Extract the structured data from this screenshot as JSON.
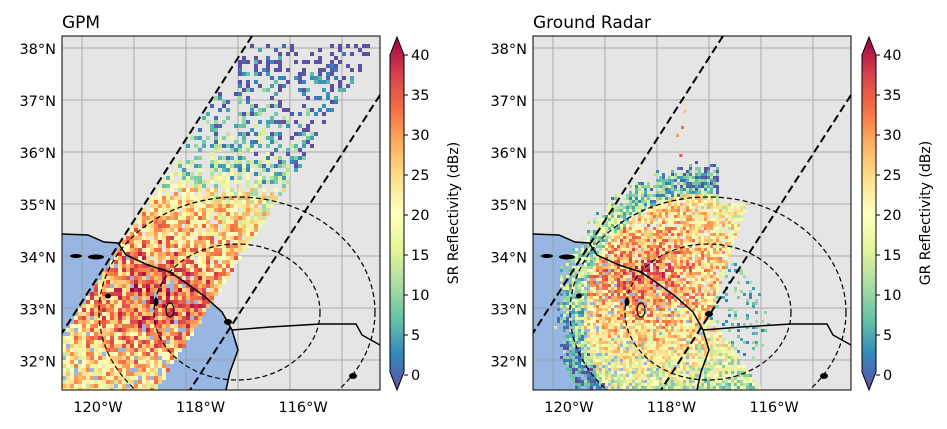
{
  "chart_data": [
    {
      "type": "heatmap",
      "title": "GPM",
      "colorbar_label": "SR Reflectivity (dBz)",
      "xlim": [
        -120.7,
        -114.5
      ],
      "ylim": [
        31.45,
        38.25
      ],
      "xticks": [
        {
          "value": -120,
          "label": "120°W"
        },
        {
          "value": -118,
          "label": "118°W"
        },
        {
          "value": -116,
          "label": "116°W"
        }
      ],
      "yticks": [
        {
          "value": 32,
          "label": "32°N"
        },
        {
          "value": 33,
          "label": "33°N"
        },
        {
          "value": 34,
          "label": "34°N"
        },
        {
          "value": 35,
          "label": "35°N"
        },
        {
          "value": 36,
          "label": "36°N"
        },
        {
          "value": 37,
          "label": "37°N"
        },
        {
          "value": 38,
          "label": "38°N"
        }
      ],
      "colorbar_ticks": [
        {
          "value": 0,
          "label": "0"
        },
        {
          "value": 5,
          "label": "5"
        },
        {
          "value": 10,
          "label": "10"
        },
        {
          "value": 15,
          "label": "15"
        },
        {
          "value": 20,
          "label": "20"
        },
        {
          "value": 25,
          "label": "25"
        },
        {
          "value": 30,
          "label": "30"
        },
        {
          "value": 35,
          "label": "35"
        },
        {
          "value": 40,
          "label": "40"
        }
      ],
      "colorbar_range": [
        0,
        40
      ],
      "grid": true
    },
    {
      "type": "heatmap",
      "title": "Ground Radar",
      "colorbar_label": "GR Reflectivity (dBz)",
      "xlim": [
        -120.7,
        -114.5
      ],
      "ylim": [
        31.45,
        38.25
      ],
      "xticks": [
        {
          "value": -120,
          "label": "120°W"
        },
        {
          "value": -118,
          "label": "118°W"
        },
        {
          "value": -116,
          "label": "116°W"
        }
      ],
      "yticks": [
        {
          "value": 32,
          "label": "32°N"
        },
        {
          "value": 33,
          "label": "33°N"
        },
        {
          "value": 34,
          "label": "34°N"
        },
        {
          "value": 35,
          "label": "35°N"
        },
        {
          "value": 36,
          "label": "36°N"
        },
        {
          "value": 37,
          "label": "37°N"
        },
        {
          "value": 38,
          "label": "38°N"
        }
      ],
      "colorbar_ticks": [
        {
          "value": 0,
          "label": "0"
        },
        {
          "value": 5,
          "label": "5"
        },
        {
          "value": 10,
          "label": "10"
        },
        {
          "value": 15,
          "label": "15"
        },
        {
          "value": 20,
          "label": "20"
        },
        {
          "value": 25,
          "label": "25"
        },
        {
          "value": 30,
          "label": "30"
        },
        {
          "value": 35,
          "label": "35"
        },
        {
          "value": 40,
          "label": "40"
        }
      ],
      "colorbar_range": [
        0,
        40
      ],
      "grid": true
    }
  ],
  "colors": {
    "land": "#e5e5e5",
    "ocean": "#97b6e1",
    "colormap": [
      "#5e4fa2",
      "#3288bd",
      "#66c2a5",
      "#abdda4",
      "#e6f598",
      "#ffffbf",
      "#fee08b",
      "#fdae61",
      "#f46d43",
      "#d53e4f",
      "#9e0142"
    ]
  }
}
